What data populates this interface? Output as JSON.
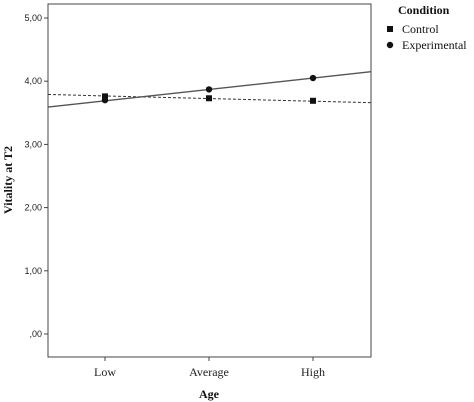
{
  "chart_data": {
    "type": "line",
    "xlabel": "Age",
    "ylabel": "Vitality at T2",
    "categories": [
      "Low",
      "Average",
      "High"
    ],
    "ylim": [
      0,
      5
    ],
    "yticks": [
      ",00",
      "1,00",
      "2,00",
      "3,00",
      "4,00",
      "5,00"
    ],
    "legend": {
      "title": "Condition",
      "placement": "top-right"
    },
    "series": [
      {
        "name": "Control",
        "marker": "square",
        "line_style": "dashed",
        "values": [
          3.76,
          3.73,
          3.69
        ],
        "fit_line": [
          3.79,
          3.66
        ]
      },
      {
        "name": "Experimental",
        "marker": "circle",
        "line_style": "solid",
        "values": [
          3.7,
          3.87,
          4.05
        ],
        "fit_line": [
          3.59,
          4.15
        ]
      }
    ]
  }
}
